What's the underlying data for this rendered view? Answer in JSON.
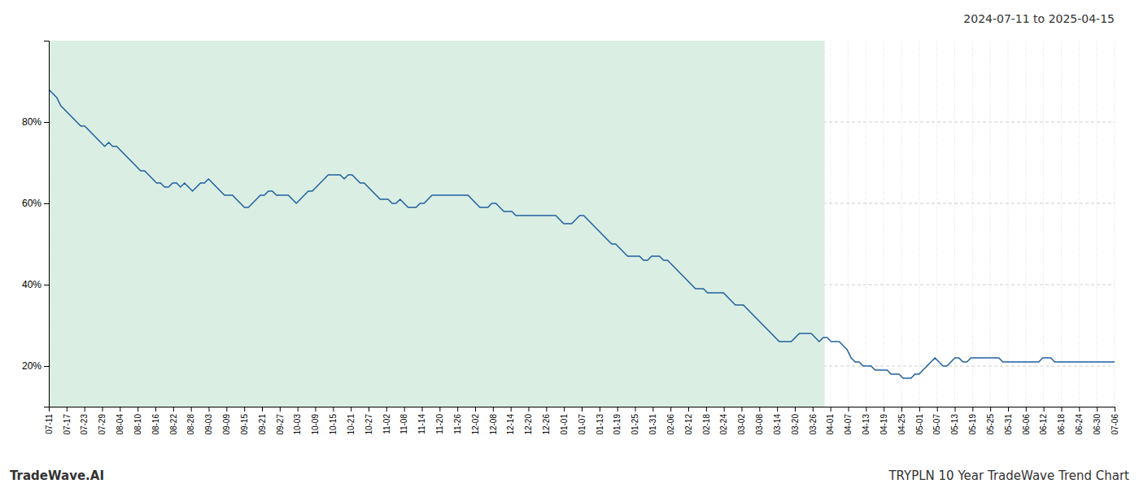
{
  "chart_data": {
    "type": "line",
    "title": "2024-07-11 to 2025-04-15",
    "annotations": [
      {
        "text": "TradeWave.AI"
      },
      {
        "text": "TRYPLN 10 Year TradeWave Trend Chart"
      }
    ],
    "color": "#2060a0",
    "grid": true,
    "span": {
      "start": 0,
      "end": 194.376,
      "color": "#daeee3"
    },
    "xlim": [
      0,
      267
    ],
    "ylim": [
      10,
      100
    ],
    "yticks": [
      {
        "value": 20,
        "label": "20%"
      },
      {
        "value": 40,
        "label": "40%"
      },
      {
        "value": 60,
        "label": "60%"
      },
      {
        "value": 80,
        "label": "80%"
      }
    ],
    "xticks": [
      {
        "value": 0,
        "label": "07-11"
      },
      {
        "value": 4.45,
        "label": "07-17"
      },
      {
        "value": 8.9,
        "label": "07-23"
      },
      {
        "value": 13.35,
        "label": "07-29"
      },
      {
        "value": 17.8,
        "label": "08-04"
      },
      {
        "value": 22.25,
        "label": "08-10"
      },
      {
        "value": 26.7,
        "label": "08-16"
      },
      {
        "value": 31.15,
        "label": "08-22"
      },
      {
        "value": 35.6,
        "label": "08-28"
      },
      {
        "value": 40.05,
        "label": "09-03"
      },
      {
        "value": 44.5,
        "label": "09-09"
      },
      {
        "value": 48.95,
        "label": "09-15"
      },
      {
        "value": 53.4,
        "label": "09-21"
      },
      {
        "value": 57.85,
        "label": "09-27"
      },
      {
        "value": 62.3,
        "label": "10-03"
      },
      {
        "value": 66.75,
        "label": "10-09"
      },
      {
        "value": 71.2,
        "label": "10-15"
      },
      {
        "value": 75.65,
        "label": "10-21"
      },
      {
        "value": 80.1,
        "label": "10-27"
      },
      {
        "value": 84.55,
        "label": "11-02"
      },
      {
        "value": 89,
        "label": "11-08"
      },
      {
        "value": 93.45,
        "label": "11-14"
      },
      {
        "value": 97.9,
        "label": "11-20"
      },
      {
        "value": 102.35,
        "label": "11-26"
      },
      {
        "value": 106.8,
        "label": "12-02"
      },
      {
        "value": 111.25,
        "label": "12-08"
      },
      {
        "value": 115.7,
        "label": "12-14"
      },
      {
        "value": 120.15,
        "label": "12-20"
      },
      {
        "value": 124.6,
        "label": "12-26"
      },
      {
        "value": 129.05,
        "label": "01-01"
      },
      {
        "value": 133.5,
        "label": "01-07"
      },
      {
        "value": 137.95,
        "label": "01-13"
      },
      {
        "value": 142.4,
        "label": "01-19"
      },
      {
        "value": 146.85,
        "label": "01-25"
      },
      {
        "value": 151.3,
        "label": "01-31"
      },
      {
        "value": 155.75,
        "label": "02-06"
      },
      {
        "value": 160.2,
        "label": "02-12"
      },
      {
        "value": 164.65,
        "label": "02-18"
      },
      {
        "value": 169.1,
        "label": "02-24"
      },
      {
        "value": 173.55,
        "label": "03-02"
      },
      {
        "value": 178,
        "label": "03-08"
      },
      {
        "value": 182.45,
        "label": "03-14"
      },
      {
        "value": 186.9,
        "label": "03-20"
      },
      {
        "value": 191.35,
        "label": "03-26"
      },
      {
        "value": 195.8,
        "label": "04-01"
      },
      {
        "value": 200.25,
        "label": "04-07"
      },
      {
        "value": 204.7,
        "label": "04-13"
      },
      {
        "value": 209.15,
        "label": "04-19"
      },
      {
        "value": 213.6,
        "label": "04-25"
      },
      {
        "value": 218.05,
        "label": "05-01"
      },
      {
        "value": 222.5,
        "label": "05-07"
      },
      {
        "value": 226.95,
        "label": "05-13"
      },
      {
        "value": 231.4,
        "label": "05-19"
      },
      {
        "value": 235.85,
        "label": "05-25"
      },
      {
        "value": 240.3,
        "label": "05-31"
      },
      {
        "value": 244.75,
        "label": "06-06"
      },
      {
        "value": 249.2,
        "label": "06-12"
      },
      {
        "value": 253.65,
        "label": "06-18"
      },
      {
        "value": 258.1,
        "label": "06-24"
      },
      {
        "value": 262.55,
        "label": "06-30"
      },
      {
        "value": 267,
        "label": "07-06"
      }
    ],
    "x": [
      0,
      1,
      2,
      3,
      4,
      5,
      6,
      7,
      8,
      9,
      10,
      11,
      12,
      13,
      14,
      15,
      16,
      17,
      18,
      19,
      20,
      21,
      22,
      23,
      24,
      25,
      26,
      27,
      28,
      29,
      30,
      31,
      32,
      33,
      34,
      35,
      36,
      37,
      38,
      39,
      40,
      41,
      42,
      43,
      44,
      45,
      46,
      47,
      48,
      49,
      50,
      51,
      52,
      53,
      54,
      55,
      56,
      57,
      58,
      59,
      60,
      61,
      62,
      63,
      64,
      65,
      66,
      67,
      68,
      69,
      70,
      71,
      72,
      73,
      74,
      75,
      76,
      77,
      78,
      79,
      80,
      81,
      82,
      83,
      84,
      85,
      86,
      87,
      88,
      89,
      90,
      91,
      92,
      93,
      94,
      95,
      96,
      97,
      98,
      99,
      100,
      101,
      102,
      103,
      104,
      105,
      106,
      107,
      108,
      109,
      110,
      111,
      112,
      113,
      114,
      115,
      116,
      117,
      118,
      119,
      120,
      121,
      122,
      123,
      124,
      125,
      126,
      127,
      128,
      129,
      130,
      131,
      132,
      133,
      134,
      135,
      136,
      137,
      138,
      139,
      140,
      141,
      142,
      143,
      144,
      145,
      146,
      147,
      148,
      149,
      150,
      151,
      152,
      153,
      154,
      155,
      156,
      157,
      158,
      159,
      160,
      161,
      162,
      163,
      164,
      165,
      166,
      167,
      168,
      169,
      170,
      171,
      172,
      173,
      174,
      175,
      176,
      177,
      178,
      179,
      180,
      181,
      182,
      183,
      184,
      185,
      186,
      187,
      188,
      189,
      190,
      191,
      192,
      193,
      194,
      195,
      196,
      197,
      198,
      199,
      200,
      201,
      202,
      203,
      204,
      205,
      206,
      207,
      208,
      209,
      210,
      211,
      212,
      213,
      214,
      215,
      216,
      217,
      218,
      219,
      220,
      221,
      222,
      223,
      224,
      225,
      226,
      227,
      228,
      229,
      230,
      231,
      232,
      233,
      234,
      235,
      236,
      237,
      238,
      239,
      240,
      241,
      242,
      243,
      244,
      245,
      246,
      247,
      248,
      249,
      250,
      251,
      252,
      253,
      254,
      255,
      256,
      257,
      258,
      259,
      260,
      261,
      262,
      263,
      264,
      265,
      266,
      267
    ],
    "values": [
      88,
      87,
      86,
      84,
      83,
      82,
      81,
      80,
      79,
      79,
      78,
      77,
      76,
      75,
      74,
      75,
      74,
      74,
      73,
      72,
      71,
      70,
      69,
      68,
      68,
      67,
      66,
      65,
      65,
      64,
      64,
      65,
      65,
      64,
      65,
      64,
      63,
      64,
      65,
      65,
      66,
      65,
      64,
      63,
      62,
      62,
      62,
      61,
      60,
      59,
      59,
      60,
      61,
      62,
      62,
      63,
      63,
      62,
      62,
      62,
      62,
      61,
      60,
      61,
      62,
      63,
      63,
      64,
      65,
      66,
      67,
      67,
      67,
      67,
      66,
      67,
      67,
      66,
      65,
      65,
      64,
      63,
      62,
      61,
      61,
      61,
      60,
      60,
      61,
      60,
      59,
      59,
      59,
      60,
      60,
      61,
      62,
      62,
      62,
      62,
      62,
      62,
      62,
      62,
      62,
      62,
      61,
      60,
      59,
      59,
      59,
      60,
      60,
      59,
      58,
      58,
      58,
      57,
      57,
      57,
      57,
      57,
      57,
      57,
      57,
      57,
      57,
      57,
      56,
      55,
      55,
      55,
      56,
      57,
      57,
      56,
      55,
      54,
      53,
      52,
      51,
      50,
      50,
      49,
      48,
      47,
      47,
      47,
      47,
      46,
      46,
      47,
      47,
      47,
      46,
      46,
      45,
      44,
      43,
      42,
      41,
      40,
      39,
      39,
      39,
      38,
      38,
      38,
      38,
      38,
      37,
      36,
      35,
      35,
      35,
      34,
      33,
      32,
      31,
      30,
      29,
      28,
      27,
      26,
      26,
      26,
      26,
      27,
      28,
      28,
      28,
      28,
      27,
      26,
      27,
      27,
      26,
      26,
      26,
      25,
      24,
      22,
      21,
      21,
      20,
      20,
      20,
      19,
      19,
      19,
      19,
      18,
      18,
      18,
      17,
      17,
      17,
      18,
      18,
      19,
      20,
      21,
      22,
      21,
      20,
      20,
      21,
      22,
      22,
      21,
      21,
      22,
      22,
      22,
      22,
      22,
      22,
      22,
      22,
      21,
      21,
      21,
      21,
      21,
      21,
      21,
      21,
      21,
      21,
      22,
      22,
      22,
      21,
      21,
      21,
      21,
      21,
      21,
      21,
      21,
      21,
      21,
      21,
      21,
      21,
      21,
      21,
      21
    ]
  }
}
